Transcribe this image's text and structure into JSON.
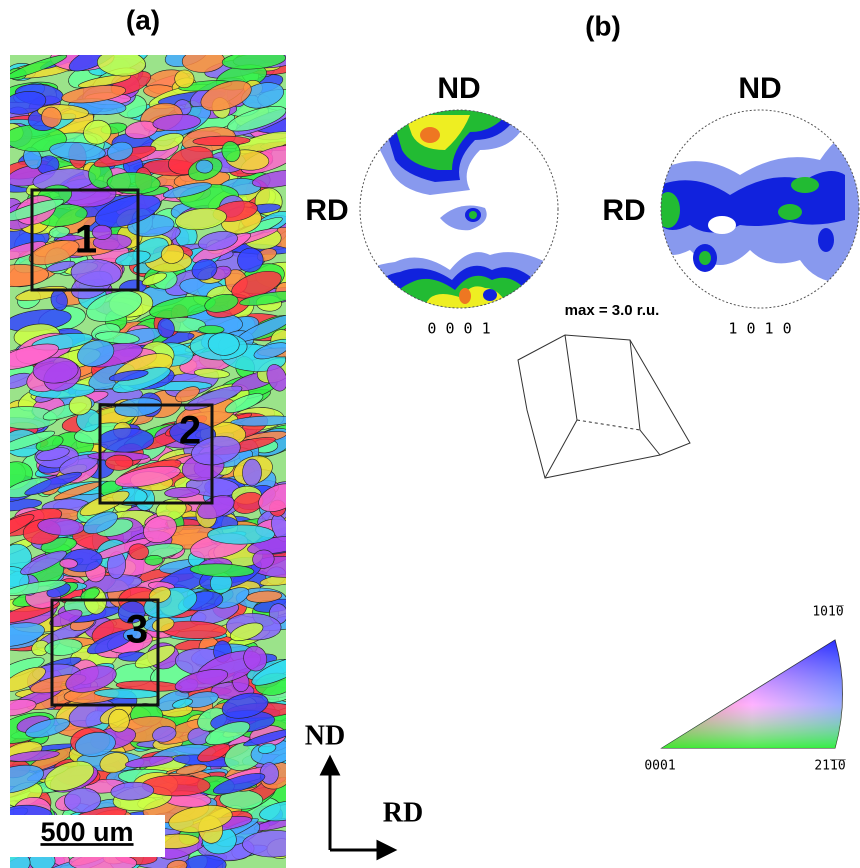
{
  "panel_a": {
    "label": "(a)",
    "regions": [
      "1",
      "2",
      "3"
    ],
    "scale_bar": "500 um",
    "axes": {
      "vertical": "ND",
      "horizontal": "RD"
    }
  },
  "panel_b": {
    "label": "(b)",
    "pole_figures": [
      {
        "top": "ND",
        "left": "RD",
        "label": "0 0 0 1"
      },
      {
        "top": "ND",
        "left": "RD",
        "label": "1 0 1 0"
      }
    ],
    "max_note": "max = 3.0 r.u.",
    "ipf_triangle": {
      "top": "101̅0",
      "left": "0001",
      "right": "21̅1̅0"
    }
  }
}
